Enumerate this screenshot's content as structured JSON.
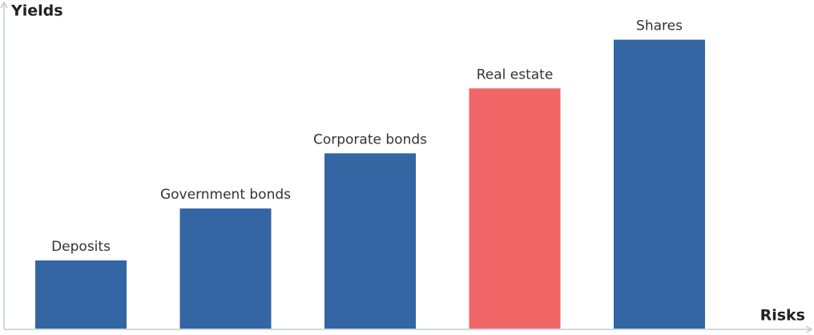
{
  "chart_data": {
    "type": "bar",
    "y_label": "Yields",
    "x_label": "Risks",
    "categories": [
      "Deposits",
      "Government bonds",
      "Corporate bonds",
      "Real estate",
      "Shares"
    ],
    "values": [
      21,
      37,
      54,
      74,
      89
    ],
    "colors": [
      "#3366a3",
      "#3366a3",
      "#3366a3",
      "#f06666",
      "#3366a3"
    ],
    "ylim": [
      0,
      100
    ]
  }
}
